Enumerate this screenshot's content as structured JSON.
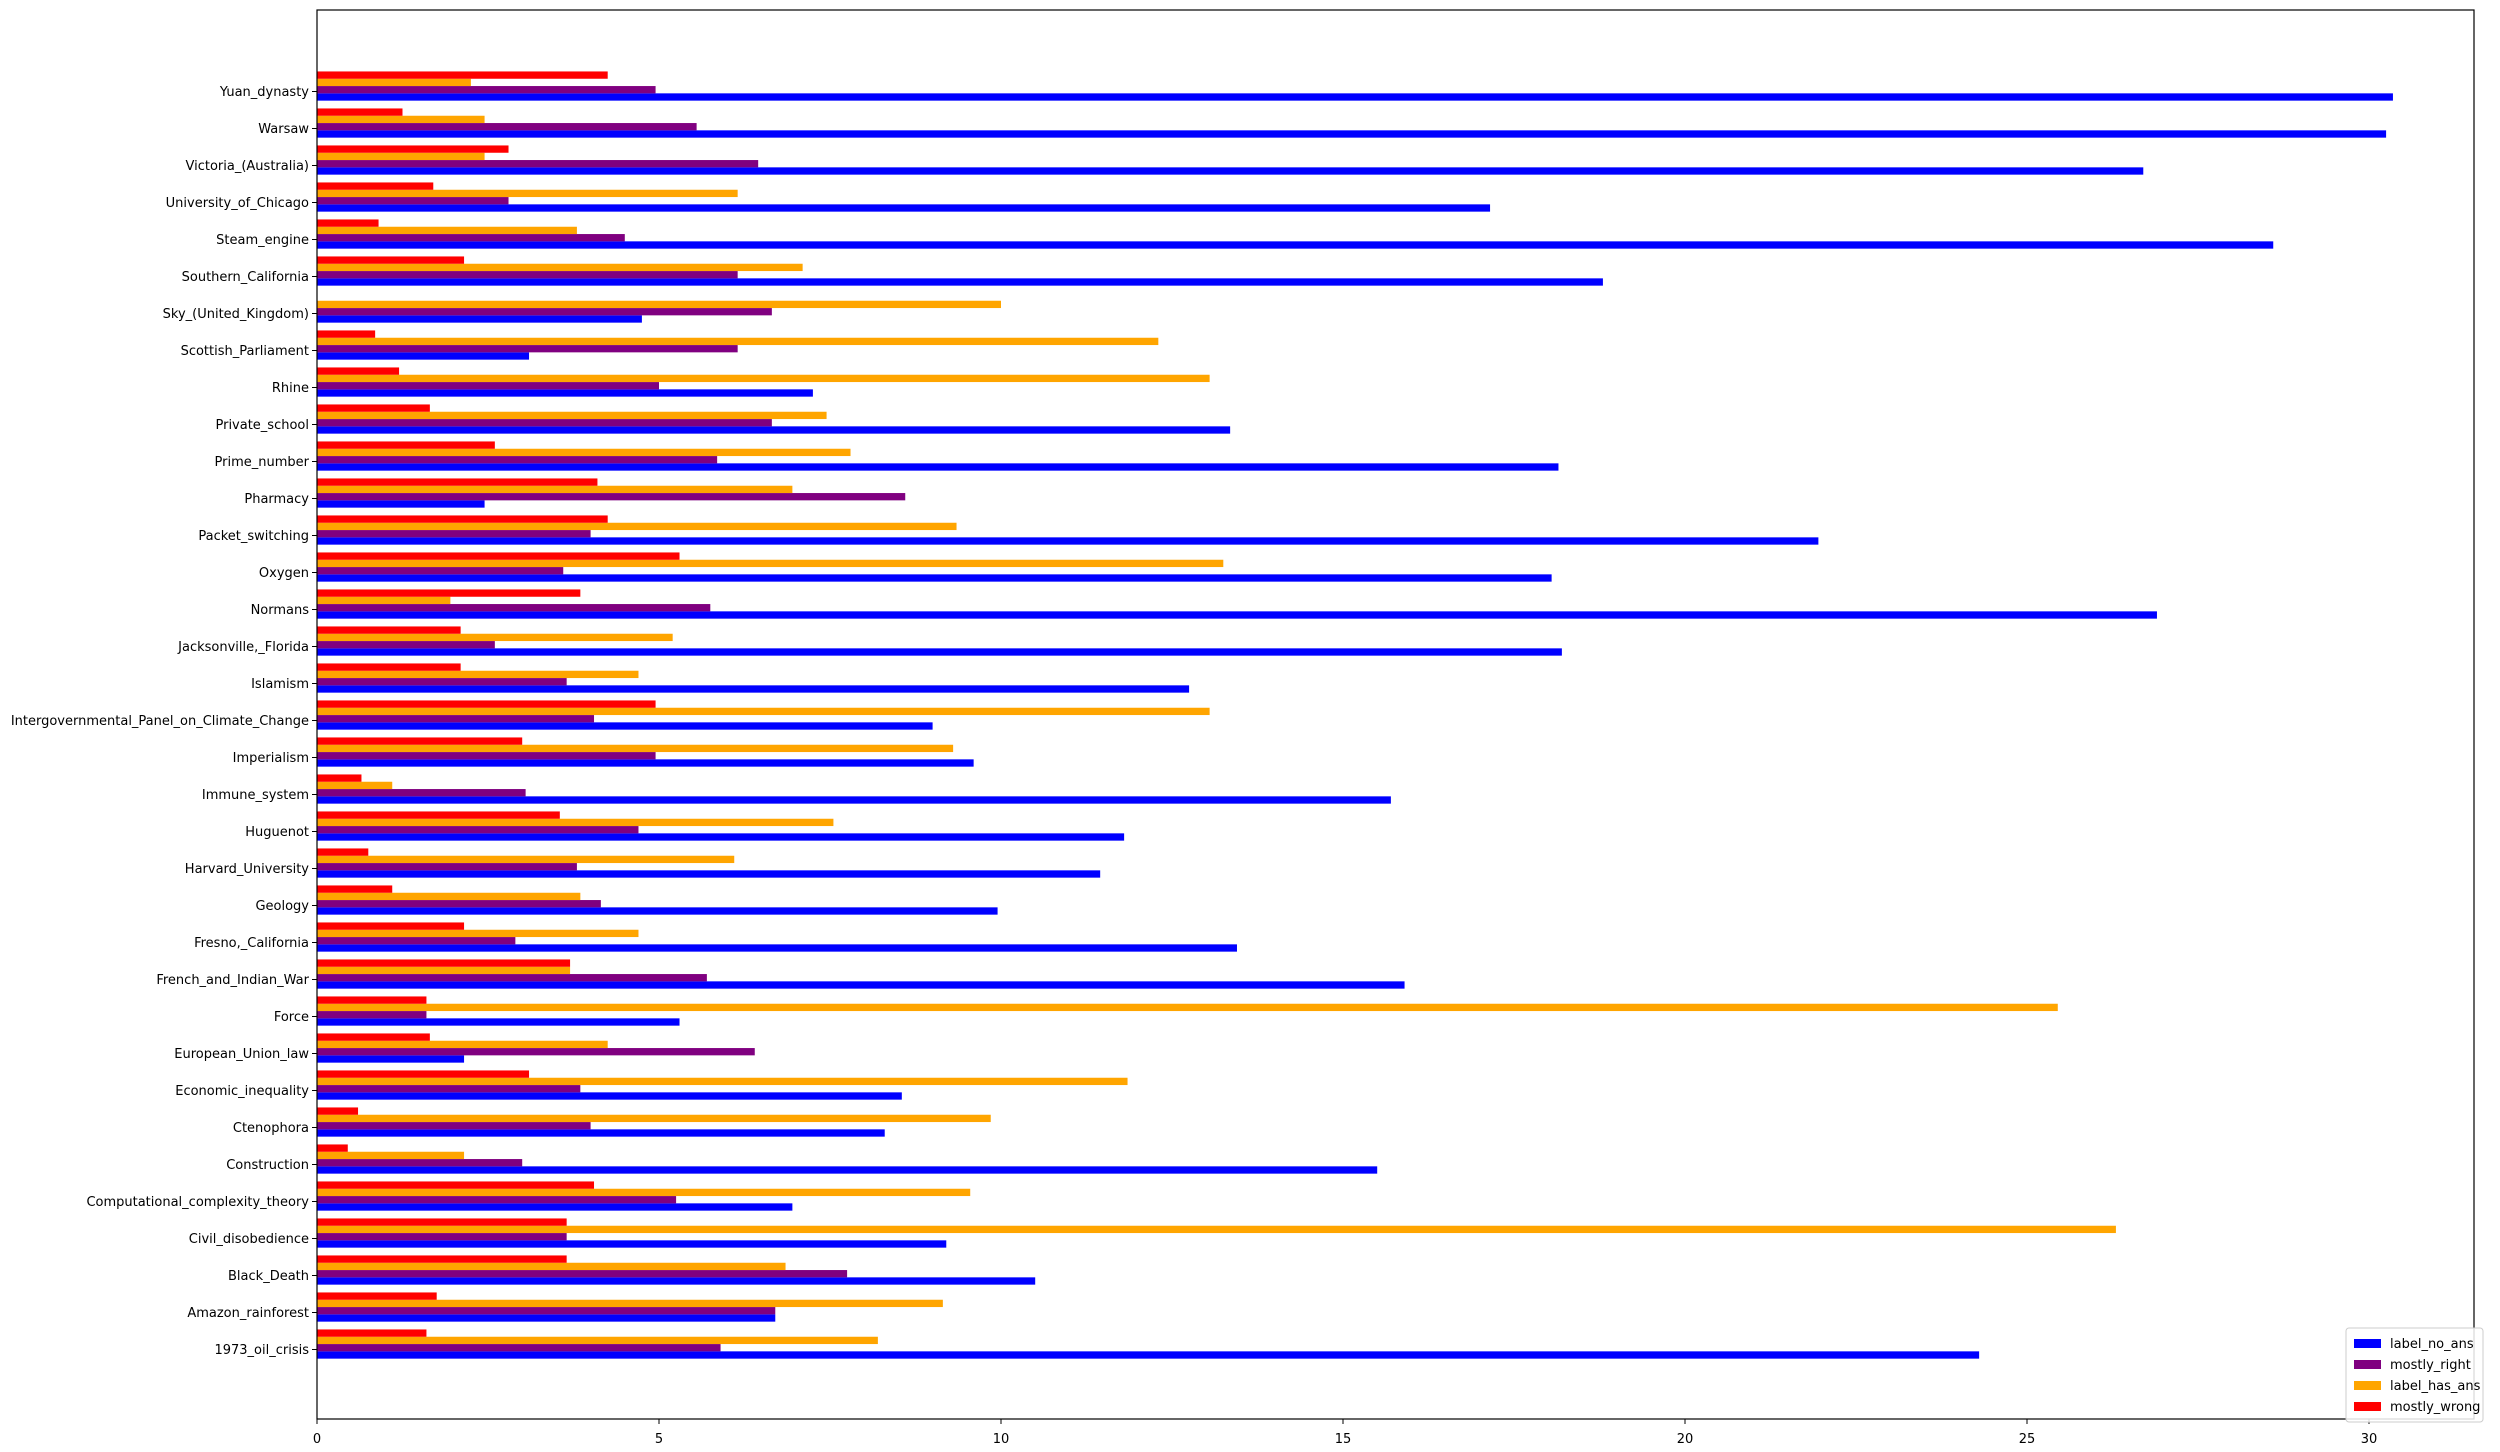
{
  "chart_data": {
    "type": "bar",
    "orientation": "horizontal",
    "title": "",
    "xlabel": "",
    "ylabel": "",
    "xlim": [
      0,
      31.8
    ],
    "xticks": [
      0,
      5,
      10,
      15,
      20,
      25,
      30
    ],
    "grid": false,
    "legend_position": "bottom-right",
    "categories": [
      "1973_oil_crisis",
      "Amazon_rainforest",
      "Black_Death",
      "Civil_disobedience",
      "Computational_complexity_theory",
      "Construction",
      "Ctenophora",
      "Economic_inequality",
      "European_Union_law",
      "Force",
      "French_and_Indian_War",
      "Fresno,_California",
      "Geology",
      "Harvard_University",
      "Huguenot",
      "Immune_system",
      "Imperialism",
      "Intergovernmental_Panel_on_Climate_Change",
      "Islamism",
      "Jacksonville,_Florida",
      "Normans",
      "Oxygen",
      "Packet_switching",
      "Pharmacy",
      "Prime_number",
      "Private_school",
      "Rhine",
      "Scottish_Parliament",
      "Sky_(United_Kingdom)",
      "Southern_California",
      "Steam_engine",
      "University_of_Chicago",
      "Victoria_(Australia)",
      "Warsaw",
      "Yuan_dynasty"
    ],
    "series": [
      {
        "name": "label_no_ans",
        "color": "#0000ff",
        "values": [
          24.3,
          6.7,
          10.5,
          9.2,
          6.95,
          15.5,
          8.3,
          8.55,
          2.15,
          5.3,
          15.9,
          13.45,
          9.95,
          11.45,
          11.8,
          15.7,
          9.6,
          9.0,
          12.75,
          18.2,
          26.9,
          18.05,
          21.95,
          2.45,
          18.15,
          13.35,
          7.25,
          3.1,
          4.75,
          18.8,
          28.6,
          17.15,
          26.7,
          30.25,
          30.35
        ]
      },
      {
        "name": "mostly_right",
        "color": "#800080",
        "values": [
          5.9,
          6.7,
          7.75,
          3.65,
          5.25,
          3.0,
          4.0,
          3.85,
          6.4,
          1.6,
          5.7,
          2.9,
          4.15,
          3.8,
          4.7,
          3.05,
          4.95,
          4.05,
          3.65,
          2.6,
          5.75,
          3.6,
          4.0,
          8.6,
          5.85,
          6.65,
          5.0,
          6.15,
          6.65,
          6.15,
          4.5,
          2.8,
          6.45,
          5.55,
          4.95
        ]
      },
      {
        "name": "label_has_ans",
        "color": "#ffa500",
        "values": [
          8.2,
          9.15,
          6.85,
          26.3,
          9.55,
          2.15,
          9.85,
          11.85,
          4.25,
          25.45,
          3.7,
          4.7,
          3.85,
          6.1,
          7.55,
          1.1,
          9.3,
          13.05,
          4.7,
          5.2,
          1.95,
          13.25,
          9.35,
          6.95,
          7.8,
          7.45,
          13.05,
          12.3,
          10.0,
          7.1,
          3.8,
          6.15,
          2.45,
          2.45,
          2.25
        ]
      },
      {
        "name": "mostly_wrong",
        "color": "#ff0000",
        "values": [
          1.6,
          1.75,
          3.65,
          3.65,
          4.05,
          0.45,
          0.6,
          3.1,
          1.65,
          1.6,
          3.7,
          2.15,
          1.1,
          0.75,
          3.55,
          0.65,
          3.0,
          4.95,
          2.1,
          2.1,
          3.85,
          5.3,
          4.25,
          4.1,
          2.6,
          1.65,
          1.2,
          0.85,
          0.0,
          2.15,
          0.9,
          1.7,
          2.8,
          1.25,
          4.25
        ]
      }
    ]
  }
}
